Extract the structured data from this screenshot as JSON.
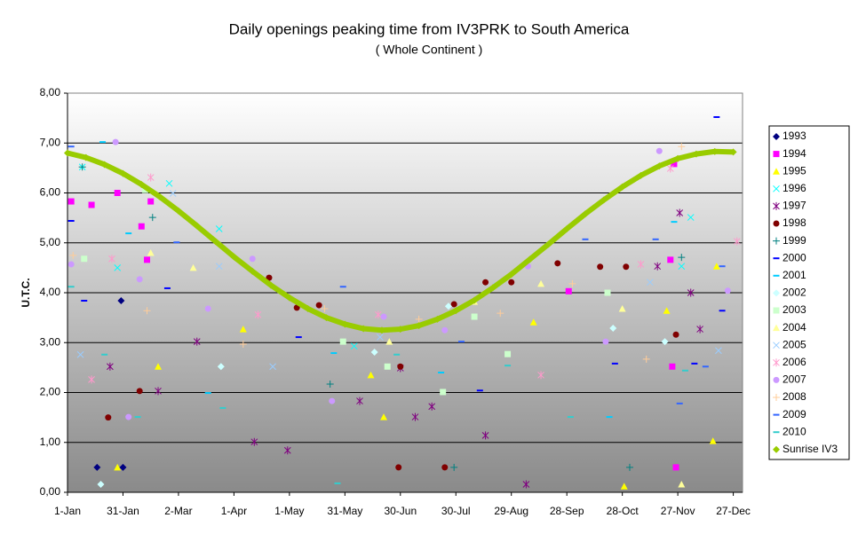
{
  "chart_data": {
    "type": "scatter",
    "title": "Daily openings peaking time from IV3PRK  to  South America",
    "subtitle": "( Whole Continent )",
    "y_label": "U.T.C.",
    "xlim": [
      1,
      366
    ],
    "ylim": [
      0,
      8
    ],
    "xticks": [
      {
        "value": 1,
        "label": "1-Jan"
      },
      {
        "value": 31,
        "label": "31-Jan"
      },
      {
        "value": 61,
        "label": "2-Mar"
      },
      {
        "value": 91,
        "label": "1-Apr"
      },
      {
        "value": 121,
        "label": "1-May"
      },
      {
        "value": 151,
        "label": "31-May"
      },
      {
        "value": 181,
        "label": "30-Jun"
      },
      {
        "value": 211,
        "label": "30-Jul"
      },
      {
        "value": 241,
        "label": "29-Aug"
      },
      {
        "value": 271,
        "label": "28-Sep"
      },
      {
        "value": 301,
        "label": "28-Oct"
      },
      {
        "value": 331,
        "label": "27-Nov"
      },
      {
        "value": 361,
        "label": "27-Dec"
      }
    ],
    "yticks": [
      {
        "value": 0,
        "label": "0,00"
      },
      {
        "value": 1,
        "label": "1,00"
      },
      {
        "value": 2,
        "label": "2,00"
      },
      {
        "value": 3,
        "label": "3,00"
      },
      {
        "value": 4,
        "label": "4,00"
      },
      {
        "value": 5,
        "label": "5,00"
      },
      {
        "value": 6,
        "label": "6,00"
      },
      {
        "value": 7,
        "label": "7,00"
      },
      {
        "value": 8,
        "label": "8,00"
      }
    ],
    "grid": true,
    "legend": "right",
    "series": [
      {
        "name": "1993",
        "color": "#000080",
        "marker": "diamond",
        "x": [
          17,
          30,
          31
        ],
        "values": [
          0.5,
          3.84,
          0.5
        ]
      },
      {
        "name": "1994",
        "color": "#ff00ff",
        "marker": "square",
        "x": [
          3,
          14,
          28,
          41,
          44,
          46,
          272,
          327,
          328,
          329,
          330
        ],
        "values": [
          5.83,
          5.76,
          6.0,
          5.33,
          4.66,
          5.83,
          4.03,
          4.66,
          2.52,
          6.58,
          0.5
        ]
      },
      {
        "name": "1995",
        "color": "#ffff00",
        "marker": "triangle",
        "x": [
          28,
          50,
          96,
          165,
          172,
          253,
          302,
          325,
          350,
          352
        ],
        "values": [
          0.5,
          2.52,
          3.27,
          2.35,
          1.51,
          3.41,
          0.12,
          3.64,
          1.03,
          4.53
        ]
      },
      {
        "name": "1996",
        "color": "#00ffff",
        "marker": "x",
        "x": [
          9,
          28,
          56,
          83,
          156,
          333,
          338
        ],
        "values": [
          6.52,
          4.5,
          6.19,
          5.28,
          2.93,
          4.53,
          5.51
        ]
      },
      {
        "name": "1997",
        "color": "#800080",
        "marker": "star",
        "x": [
          24,
          50,
          71,
          102,
          120,
          159,
          181,
          189,
          198,
          227,
          249,
          320,
          332,
          338,
          343
        ],
        "values": [
          2.52,
          2.03,
          3.02,
          1.01,
          0.84,
          1.83,
          2.49,
          1.51,
          1.72,
          1.14,
          0.16,
          4.53,
          5.6,
          4.0,
          3.27
        ]
      },
      {
        "name": "1998",
        "color": "#800000",
        "marker": "circle",
        "x": [
          23,
          40,
          110,
          125,
          137,
          180,
          181,
          205,
          210,
          227,
          241,
          266,
          289,
          303,
          330
        ],
        "values": [
          1.5,
          2.03,
          4.3,
          3.7,
          3.75,
          0.5,
          2.52,
          0.5,
          3.77,
          4.21,
          4.21,
          4.59,
          4.52,
          4.52,
          3.16
        ]
      },
      {
        "name": "1999",
        "color": "#008080",
        "marker": "plus",
        "x": [
          9,
          47,
          143,
          210,
          305,
          333
        ],
        "values": [
          6.52,
          5.51,
          2.17,
          0.5,
          0.5,
          4.71
        ]
      },
      {
        "name": "2000",
        "color": "#0000ff",
        "marker": "dash",
        "x": [
          3,
          10,
          55,
          126,
          224,
          297,
          340,
          352,
          355
        ],
        "values": [
          5.44,
          3.84,
          4.09,
          3.11,
          2.04,
          2.58,
          2.58,
          7.52,
          3.64
        ]
      },
      {
        "name": "2001",
        "color": "#00ccff",
        "marker": "dash",
        "x": [
          20,
          34,
          77,
          145,
          203,
          294,
          329
        ],
        "values": [
          7.02,
          5.19,
          1.99,
          2.79,
          2.4,
          1.51,
          5.42
        ]
      },
      {
        "name": "2002",
        "color": "#ccffff",
        "marker": "diamond",
        "x": [
          19,
          84,
          167,
          207,
          296,
          324
        ],
        "values": [
          0.16,
          2.52,
          2.81,
          3.73,
          3.29,
          3.02
        ]
      },
      {
        "name": "2003",
        "color": "#ccffcc",
        "marker": "square",
        "x": [
          10,
          43,
          150,
          174,
          204,
          221,
          239,
          293
        ],
        "values": [
          4.68,
          6.06,
          3.02,
          2.52,
          2.01,
          3.52,
          2.77,
          4.0
        ]
      },
      {
        "name": "2004",
        "color": "#ffff99",
        "marker": "triangle",
        "x": [
          46,
          69,
          175,
          221,
          257,
          301,
          333
        ],
        "values": [
          4.8,
          4.5,
          3.02,
          3.82,
          4.18,
          3.68,
          0.16
        ]
      },
      {
        "name": "2005",
        "color": "#99ccff",
        "marker": "x",
        "x": [
          8,
          58,
          83,
          112,
          170,
          233,
          316,
          353
        ],
        "values": [
          2.76,
          5.99,
          4.53,
          2.52,
          3.11,
          4.14,
          4.21,
          2.84
        ]
      },
      {
        "name": "2006",
        "color": "#ff99cc",
        "marker": "star",
        "x": [
          14,
          25,
          46,
          104,
          169,
          257,
          311,
          327,
          363
        ],
        "values": [
          2.26,
          4.68,
          6.31,
          3.56,
          3.56,
          2.35,
          4.57,
          6.49,
          5.03
        ]
      },
      {
        "name": "2007",
        "color": "#cc99ff",
        "marker": "circle",
        "x": [
          3,
          27,
          34,
          40,
          77,
          101,
          144,
          172,
          205,
          250,
          292,
          321,
          358
        ],
        "values": [
          4.57,
          7.02,
          1.51,
          4.27,
          3.68,
          4.68,
          1.83,
          3.52,
          3.25,
          4.53,
          3.02,
          6.84,
          4.04
        ]
      },
      {
        "name": "2008",
        "color": "#ffcc99",
        "marker": "plus",
        "x": [
          4,
          44,
          96,
          140,
          191,
          235,
          274,
          314,
          333
        ],
        "values": [
          4.75,
          3.64,
          2.97,
          3.68,
          3.47,
          3.59,
          4.18,
          2.67,
          6.93
        ]
      },
      {
        "name": "2009",
        "color": "#3366ff",
        "marker": "dash",
        "x": [
          3,
          60,
          150,
          214,
          281,
          319,
          332,
          346,
          355
        ],
        "values": [
          6.93,
          5.01,
          4.12,
          3.02,
          5.07,
          5.07,
          1.78,
          2.52,
          4.53
        ]
      },
      {
        "name": "2010",
        "color": "#33cccc",
        "marker": "dash",
        "x": [
          3,
          21,
          39,
          85,
          147,
          179,
          239,
          273,
          335
        ],
        "values": [
          4.12,
          2.76,
          1.51,
          1.69,
          0.18,
          2.76,
          2.54,
          1.51,
          2.44
        ]
      },
      {
        "name": "Sunrise IV3",
        "color": "#99cc00",
        "marker": "diamond",
        "line": true,
        "x": [
          1,
          11,
          21,
          31,
          41,
          51,
          61,
          71,
          81,
          91,
          101,
          111,
          121,
          131,
          141,
          151,
          161,
          171,
          181,
          191,
          201,
          211,
          221,
          231,
          241,
          251,
          261,
          271,
          281,
          291,
          301,
          311,
          321,
          331,
          341,
          351,
          361
        ],
        "values": [
          6.8,
          6.71,
          6.57,
          6.39,
          6.17,
          5.92,
          5.64,
          5.34,
          5.03,
          4.72,
          4.43,
          4.15,
          3.9,
          3.68,
          3.5,
          3.37,
          3.28,
          3.25,
          3.27,
          3.34,
          3.47,
          3.64,
          3.85,
          4.1,
          4.37,
          4.67,
          4.97,
          5.28,
          5.58,
          5.86,
          6.12,
          6.35,
          6.54,
          6.69,
          6.78,
          6.83,
          6.82
        ]
      }
    ]
  }
}
